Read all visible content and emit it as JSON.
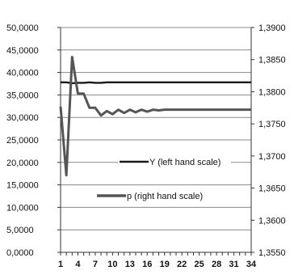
{
  "chart_data": {
    "type": "line",
    "title": "",
    "xlabel": "",
    "x": [
      1,
      2,
      3,
      4,
      5,
      6,
      7,
      8,
      9,
      10,
      11,
      12,
      13,
      14,
      15,
      16,
      17,
      18,
      19,
      20,
      21,
      22,
      23,
      24,
      25,
      26,
      27,
      28,
      29,
      30,
      31,
      32,
      33,
      34
    ],
    "x_tick_labels": [
      "1",
      "4",
      "7",
      "10",
      "13",
      "16",
      "19",
      "22",
      "25",
      "28",
      "31",
      "34"
    ],
    "x_tick_values": [
      1,
      4,
      7,
      10,
      13,
      16,
      19,
      22,
      25,
      28,
      31,
      34
    ],
    "y_left": {
      "ylim": [
        0,
        50
      ],
      "tick_values": [
        0,
        5,
        10,
        15,
        20,
        25,
        30,
        35,
        40,
        45,
        50
      ],
      "tick_labels": [
        "0,0000",
        "5,0000",
        "10,0000",
        "15,0000",
        "20,0000",
        "25,0000",
        "30,0000",
        "35,0000",
        "40,0000",
        "45,0000",
        "50,0000"
      ]
    },
    "y_right": {
      "ylim": [
        1.355,
        1.39
      ],
      "tick_values": [
        1.355,
        1.36,
        1.365,
        1.37,
        1.375,
        1.38,
        1.385,
        1.39
      ],
      "tick_labels": [
        "1,3550",
        "1,3600",
        "1,3650",
        "1,3700",
        "1,3750",
        "1,3800",
        "1,3850",
        "1,3900"
      ]
    },
    "grid": true,
    "legend_placement": "center",
    "series": [
      {
        "name": "Y (left hand scale)",
        "axis": "left",
        "color": "#1a1a1a",
        "values": [
          37.8,
          37.8,
          37.6,
          37.7,
          37.7,
          37.8,
          37.7,
          37.7,
          37.8,
          37.8,
          37.8,
          37.8,
          37.8,
          37.8,
          37.8,
          37.8,
          37.8,
          37.8,
          37.8,
          37.8,
          37.8,
          37.8,
          37.8,
          37.8,
          37.8,
          37.8,
          37.8,
          37.8,
          37.8,
          37.8,
          37.8,
          37.8,
          37.8,
          37.8
        ]
      },
      {
        "name": "p (right hand scale)",
        "axis": "right",
        "color": "#555555",
        "values": [
          1.3777,
          1.367,
          1.3854,
          1.3797,
          1.3797,
          1.3775,
          1.3775,
          1.3763,
          1.377,
          1.3765,
          1.3772,
          1.3767,
          1.3772,
          1.3768,
          1.3772,
          1.3769,
          1.3772,
          1.3771,
          1.3772,
          1.3772,
          1.3772,
          1.3772,
          1.3772,
          1.3772,
          1.3772,
          1.3772,
          1.3772,
          1.3772,
          1.3772,
          1.3772,
          1.3772,
          1.3772,
          1.3772,
          1.3772
        ]
      }
    ]
  }
}
